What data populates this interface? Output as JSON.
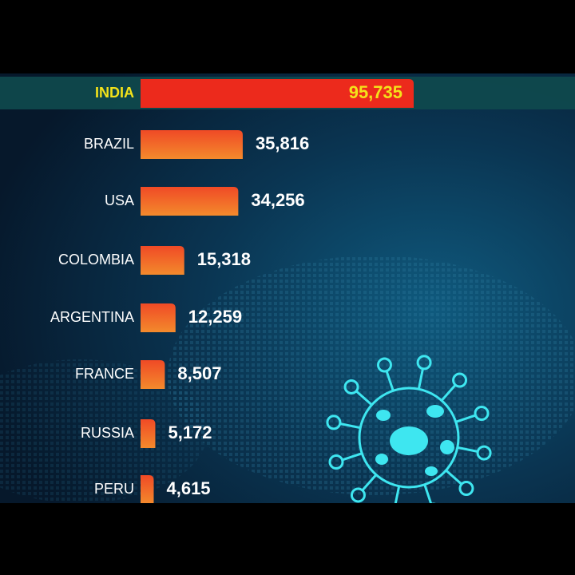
{
  "chart_data": {
    "type": "hbar",
    "categories": [
      "INDIA",
      "BRAZIL",
      "USA",
      "COLOMBIA",
      "ARGENTINA",
      "FRANCE",
      "RUSSIA",
      "PERU"
    ],
    "values": [
      95735,
      35816,
      34256,
      15318,
      12259,
      8507,
      5172,
      4615
    ],
    "value_labels": [
      "95,735",
      "35,816",
      "34,256",
      "15,318",
      "12,259",
      "8,507",
      "5,172",
      "4,615"
    ],
    "color": "#ec2a1c"
  }
}
